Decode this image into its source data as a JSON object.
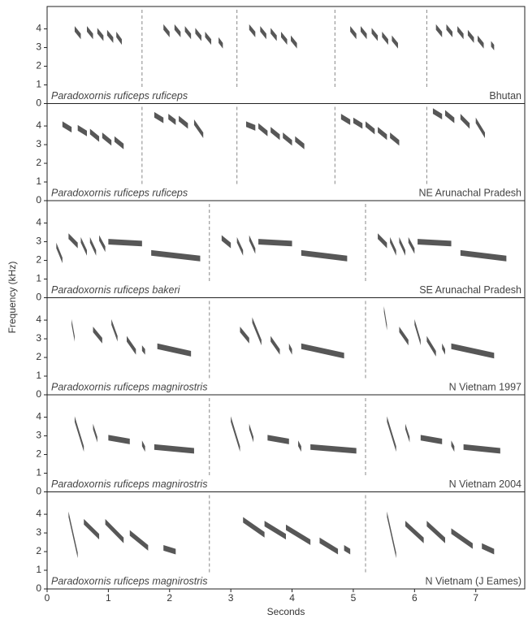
{
  "ylabel": "Frequency (kHz)",
  "chart_data": [
    {
      "type": "spectrogram",
      "title": "Paradoxornis ruficeps ruficeps",
      "annotation": "Bhutan",
      "xlim": [
        0,
        7.8
      ],
      "ylim": [
        0,
        5.2
      ],
      "yticks": [
        0,
        1,
        2,
        3,
        4
      ],
      "dividers": [
        1.55,
        3.1,
        4.7,
        6.2
      ],
      "notes": [
        [
          0.45,
          0.55,
          4.0,
          3.6
        ],
        [
          0.65,
          0.75,
          4.0,
          3.6
        ],
        [
          0.82,
          0.92,
          3.9,
          3.5
        ],
        [
          0.98,
          1.08,
          3.8,
          3.4
        ],
        [
          1.13,
          1.22,
          3.7,
          3.3
        ],
        [
          1.9,
          2.0,
          4.1,
          3.7
        ],
        [
          2.08,
          2.18,
          4.1,
          3.7
        ],
        [
          2.25,
          2.35,
          4.0,
          3.6
        ],
        [
          2.42,
          2.52,
          3.9,
          3.5
        ],
        [
          2.58,
          2.68,
          3.7,
          3.3
        ],
        [
          2.8,
          2.87,
          3.4,
          3.1
        ],
        [
          3.3,
          3.4,
          4.1,
          3.7
        ],
        [
          3.48,
          3.58,
          4.0,
          3.6
        ],
        [
          3.65,
          3.75,
          3.9,
          3.5
        ],
        [
          3.82,
          3.92,
          3.7,
          3.3
        ],
        [
          3.98,
          4.08,
          3.5,
          3.1
        ],
        [
          4.95,
          5.05,
          4.0,
          3.6
        ],
        [
          5.12,
          5.22,
          4.0,
          3.6
        ],
        [
          5.3,
          5.4,
          3.9,
          3.5
        ],
        [
          5.47,
          5.57,
          3.7,
          3.3
        ],
        [
          5.63,
          5.73,
          3.5,
          3.1
        ],
        [
          6.35,
          6.45,
          4.1,
          3.7
        ],
        [
          6.52,
          6.62,
          4.1,
          3.7
        ],
        [
          6.7,
          6.8,
          4.0,
          3.6
        ],
        [
          6.87,
          6.97,
          3.8,
          3.4
        ],
        [
          7.03,
          7.13,
          3.5,
          3.1
        ],
        [
          7.25,
          7.3,
          3.2,
          3.0
        ]
      ]
    },
    {
      "type": "spectrogram",
      "title": "Paradoxornis ruficeps ruficeps",
      "annotation": "NE Arunachal Pradesh",
      "xlim": [
        0,
        7.8
      ],
      "ylim": [
        0,
        5.2
      ],
      "yticks": [
        0,
        1,
        2,
        3,
        4
      ],
      "dividers": [
        1.55,
        3.1,
        4.7,
        6.2
      ],
      "notes": [
        [
          0.25,
          0.4,
          4.1,
          3.8
        ],
        [
          0.5,
          0.65,
          3.9,
          3.6
        ],
        [
          0.7,
          0.85,
          3.7,
          3.3
        ],
        [
          0.9,
          1.05,
          3.5,
          3.1
        ],
        [
          1.1,
          1.25,
          3.3,
          2.9
        ],
        [
          1.75,
          1.9,
          4.6,
          4.3
        ],
        [
          1.98,
          2.1,
          4.5,
          4.2
        ],
        [
          2.15,
          2.3,
          4.4,
          4.0
        ],
        [
          2.4,
          2.55,
          4.2,
          3.5
        ],
        [
          3.25,
          3.4,
          4.1,
          3.9
        ],
        [
          3.45,
          3.6,
          4.0,
          3.6
        ],
        [
          3.65,
          3.8,
          3.8,
          3.4
        ],
        [
          3.85,
          4.0,
          3.5,
          3.1
        ],
        [
          4.05,
          4.2,
          3.3,
          2.9
        ],
        [
          4.8,
          4.95,
          4.5,
          4.2
        ],
        [
          5.0,
          5.15,
          4.3,
          4.0
        ],
        [
          5.2,
          5.35,
          4.1,
          3.7
        ],
        [
          5.4,
          5.55,
          3.8,
          3.4
        ],
        [
          5.6,
          5.75,
          3.5,
          3.1
        ],
        [
          6.3,
          6.45,
          4.8,
          4.5
        ],
        [
          6.5,
          6.65,
          4.7,
          4.3
        ],
        [
          6.75,
          6.9,
          4.5,
          4.0
        ],
        [
          7.0,
          7.15,
          4.3,
          3.5
        ]
      ]
    },
    {
      "type": "spectrogram",
      "title": "Paradoxornis ruficeps bakeri",
      "annotation": "SE Arunachal Pradesh",
      "xlim": [
        0,
        7.8
      ],
      "ylim": [
        0,
        5.2
      ],
      "yticks": [
        0,
        1,
        2,
        3,
        4
      ],
      "dividers": [
        2.65,
        5.2
      ],
      "notes": [
        [
          0.15,
          0.25,
          2.8,
          2.0
        ],
        [
          0.35,
          0.5,
          3.3,
          2.8
        ],
        [
          0.55,
          0.65,
          3.1,
          2.4
        ],
        [
          0.7,
          0.8,
          3.1,
          2.4
        ],
        [
          0.85,
          0.95,
          3.2,
          2.6
        ],
        [
          1.0,
          1.55,
          3.0,
          2.9
        ],
        [
          1.7,
          2.5,
          2.4,
          2.1
        ],
        [
          2.85,
          3.0,
          3.2,
          2.8
        ],
        [
          3.1,
          3.2,
          3.1,
          2.4
        ],
        [
          3.3,
          3.4,
          3.2,
          2.5
        ],
        [
          3.45,
          4.0,
          3.0,
          2.9
        ],
        [
          4.15,
          4.9,
          2.4,
          2.1
        ],
        [
          5.4,
          5.55,
          3.3,
          2.8
        ],
        [
          5.6,
          5.7,
          3.1,
          2.4
        ],
        [
          5.75,
          5.85,
          3.1,
          2.4
        ],
        [
          5.9,
          6.0,
          3.1,
          2.5
        ],
        [
          6.05,
          6.6,
          3.0,
          2.9
        ],
        [
          6.75,
          7.5,
          2.4,
          2.1
        ]
      ]
    },
    {
      "type": "spectrogram",
      "title": "Paradoxornis ruficeps magnirostris",
      "annotation": "N Vietnam 1997",
      "xlim": [
        0,
        7.8
      ],
      "ylim": [
        0,
        5.2
      ],
      "yticks": [
        0,
        1,
        2,
        3,
        4
      ],
      "dividers": [
        2.65,
        5.2
      ],
      "notes": [
        [
          0.4,
          0.45,
          3.9,
          3.0
        ],
        [
          0.75,
          0.9,
          3.5,
          2.9
        ],
        [
          1.05,
          1.15,
          3.9,
          3.0
        ],
        [
          1.3,
          1.45,
          3.0,
          2.3
        ],
        [
          1.55,
          1.6,
          2.5,
          2.3
        ],
        [
          1.8,
          2.35,
          2.6,
          2.2
        ],
        [
          3.15,
          3.3,
          3.5,
          2.9
        ],
        [
          3.35,
          3.5,
          4.0,
          2.8
        ],
        [
          3.65,
          3.8,
          3.0,
          2.3
        ],
        [
          3.95,
          4.0,
          2.6,
          2.3
        ],
        [
          4.15,
          4.85,
          2.6,
          2.1
        ],
        [
          5.5,
          5.55,
          4.6,
          3.6
        ],
        [
          5.75,
          5.9,
          3.5,
          2.8
        ],
        [
          6.0,
          6.1,
          3.9,
          2.8
        ],
        [
          6.2,
          6.35,
          3.0,
          2.2
        ],
        [
          6.45,
          6.5,
          2.6,
          2.3
        ],
        [
          6.6,
          7.3,
          2.6,
          2.1
        ]
      ]
    },
    {
      "type": "spectrogram",
      "title": "Paradoxornis ruficeps magnirostris",
      "annotation": "N Vietnam 2004",
      "xlim": [
        0,
        7.8
      ],
      "ylim": [
        0,
        5.2
      ],
      "yticks": [
        0,
        1,
        2,
        3,
        4
      ],
      "dividers": [
        2.65,
        5.2
      ],
      "notes": [
        [
          0.45,
          0.6,
          3.9,
          2.3
        ],
        [
          0.75,
          0.82,
          3.5,
          2.8
        ],
        [
          1.0,
          1.35,
          2.9,
          2.7
        ],
        [
          1.55,
          1.6,
          2.6,
          2.3
        ],
        [
          1.75,
          2.4,
          2.4,
          2.2
        ],
        [
          3.0,
          3.15,
          3.9,
          2.3
        ],
        [
          3.3,
          3.37,
          3.5,
          2.8
        ],
        [
          3.6,
          3.95,
          2.9,
          2.7
        ],
        [
          4.1,
          4.15,
          2.6,
          2.3
        ],
        [
          4.3,
          5.05,
          2.4,
          2.2
        ],
        [
          5.55,
          5.7,
          3.9,
          2.3
        ],
        [
          5.85,
          5.92,
          3.5,
          2.8
        ],
        [
          6.1,
          6.45,
          2.9,
          2.7
        ],
        [
          6.6,
          6.65,
          2.6,
          2.3
        ],
        [
          6.8,
          7.4,
          2.4,
          2.2
        ]
      ]
    },
    {
      "type": "spectrogram",
      "title": "Paradoxornis ruficeps magnirostris",
      "annotation": "N Vietnam (J Eames)",
      "xlim": [
        0,
        7.8
      ],
      "ylim": [
        0,
        5.2
      ],
      "yticks": [
        0,
        1,
        2,
        3,
        4
      ],
      "dividers": [
        2.65,
        5.2
      ],
      "xticks": [
        0,
        1,
        2,
        3,
        4,
        5,
        6,
        7
      ],
      "xlabel": "Seconds",
      "notes": [
        [
          0.35,
          0.5,
          4.0,
          1.8
        ],
        [
          0.6,
          0.85,
          3.6,
          2.8
        ],
        [
          0.95,
          1.25,
          3.6,
          2.6
        ],
        [
          1.35,
          1.65,
          3.0,
          2.2
        ],
        [
          1.9,
          2.1,
          2.2,
          2.0
        ],
        [
          3.2,
          3.55,
          3.7,
          2.9
        ],
        [
          3.55,
          3.9,
          3.5,
          2.8
        ],
        [
          3.9,
          4.3,
          3.3,
          2.5
        ],
        [
          4.45,
          4.75,
          2.6,
          2.0
        ],
        [
          4.85,
          4.95,
          2.2,
          2.0
        ],
        [
          5.55,
          5.7,
          4.0,
          1.8
        ],
        [
          5.85,
          6.15,
          3.5,
          2.6
        ],
        [
          6.2,
          6.5,
          3.5,
          2.6
        ],
        [
          6.6,
          6.95,
          3.1,
          2.3
        ],
        [
          7.1,
          7.3,
          2.3,
          2.0
        ]
      ]
    }
  ]
}
